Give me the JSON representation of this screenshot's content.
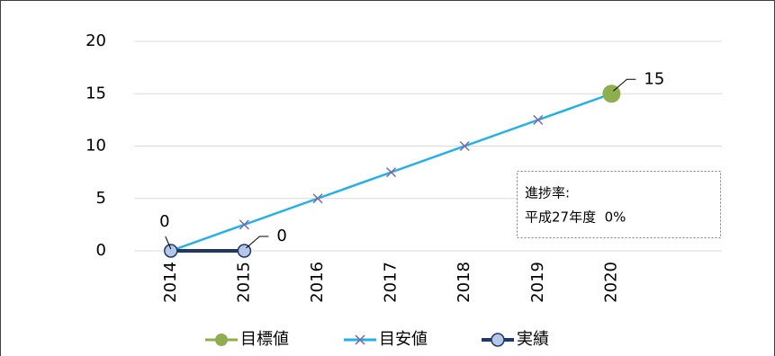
{
  "chart_data": {
    "type": "line",
    "categories": [
      "2014",
      "2015",
      "2016",
      "2017",
      "2018",
      "2019",
      "2020"
    ],
    "series": [
      {
        "name": "目標値",
        "color": "#8faf4f",
        "marker": "circle-large",
        "data_labels": true,
        "label_color": "#7f9f3f",
        "values": [
          null,
          null,
          null,
          null,
          null,
          null,
          15
        ]
      },
      {
        "name": "目安値",
        "color": "#21b0e8",
        "marker": "x",
        "marker_color": "#8064a2",
        "data_labels": false,
        "values": [
          0,
          2.5,
          5,
          7.5,
          10,
          12.5,
          15
        ]
      },
      {
        "name": "実績",
        "color": "#1f3864",
        "marker": "circle",
        "marker_color": "#b4c7e7",
        "data_labels": true,
        "label_color": "#000000",
        "values": [
          0,
          0,
          null,
          null,
          null,
          null,
          null
        ]
      }
    ],
    "ylim": [
      0,
      20
    ],
    "yticks": [
      0,
      5,
      10,
      15,
      20
    ],
    "grid": true,
    "legend": "bottom",
    "annotation": [
      "進捗率:",
      "平成27年度  0%"
    ]
  }
}
